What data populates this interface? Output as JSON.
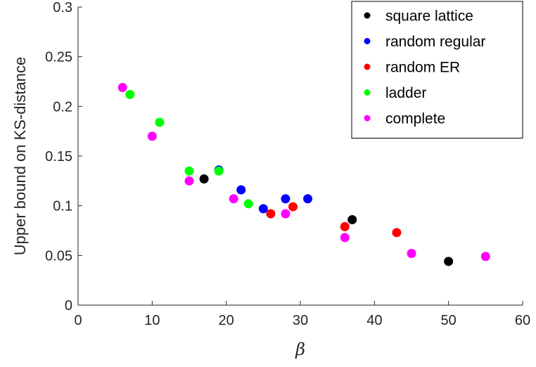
{
  "chart_data": {
    "type": "scatter",
    "xlabel": "β",
    "ylabel": "Upper bound on KS-distance",
    "xlim": [
      0,
      60
    ],
    "ylim": [
      0,
      0.3
    ],
    "xticks": [
      0,
      10,
      20,
      30,
      40,
      50,
      60
    ],
    "yticks": [
      0,
      0.05,
      0.1,
      0.15,
      0.2,
      0.25,
      0.3
    ],
    "xtick_labels": [
      "0",
      "10",
      "20",
      "30",
      "40",
      "50",
      "60"
    ],
    "ytick_labels": [
      "0",
      "0.05",
      "0.1",
      "0.15",
      "0.2",
      "0.25",
      "0.3"
    ],
    "grid": false,
    "legend_position": "top-right",
    "series": [
      {
        "name": "square lattice",
        "color": "#000000",
        "points": [
          [
            17,
            0.127
          ],
          [
            37,
            0.086
          ],
          [
            50,
            0.044
          ]
        ]
      },
      {
        "name": "random regular",
        "color": "#0000ff",
        "points": [
          [
            19,
            0.136
          ],
          [
            22,
            0.116
          ],
          [
            25,
            0.097
          ],
          [
            28,
            0.107
          ],
          [
            31,
            0.107
          ]
        ]
      },
      {
        "name": "random ER",
        "color": "#ff0000",
        "points": [
          [
            26,
            0.092
          ],
          [
            29,
            0.099
          ],
          [
            36,
            0.079
          ],
          [
            43,
            0.073
          ]
        ]
      },
      {
        "name": "ladder",
        "color": "#00ff00",
        "points": [
          [
            7,
            0.212
          ],
          [
            11,
            0.184
          ],
          [
            15,
            0.135
          ],
          [
            19,
            0.135
          ],
          [
            23,
            0.102
          ]
        ]
      },
      {
        "name": "complete",
        "color": "#ff00ff",
        "points": [
          [
            6,
            0.219
          ],
          [
            10,
            0.17
          ],
          [
            15,
            0.125
          ],
          [
            21,
            0.107
          ],
          [
            28,
            0.092
          ],
          [
            36,
            0.068
          ],
          [
            45,
            0.052
          ],
          [
            55,
            0.049
          ]
        ]
      }
    ]
  }
}
